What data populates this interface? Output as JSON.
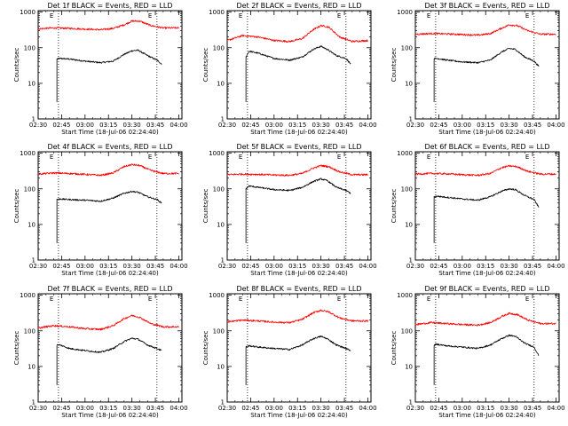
{
  "figure": {
    "shared": {
      "type": "line",
      "xlabel": "Start Time (18-Jul-06 02:24:40)",
      "ylabel": "Counts/sec",
      "x_ticks": [
        "02:30",
        "02:45",
        "03:00",
        "03:15",
        "03:30",
        "03:45",
        "04:00"
      ],
      "x_tick_minutes": [
        0,
        15,
        30,
        45,
        60,
        75,
        90
      ],
      "xlim_minutes_after_0230": [
        0,
        92
      ],
      "y_ticks": [
        "1",
        "10",
        "100",
        "1000"
      ],
      "y_tick_values": [
        1,
        10,
        100,
        1000
      ],
      "ylim": [
        1,
        1100
      ],
      "yscale": "log",
      "marker_label": "E",
      "colors": {
        "events": "#000000",
        "lld": "#ff0000"
      }
    }
  },
  "chart_data": [
    {
      "type": "line",
      "title": "Det 1f BLACK = Events, RED = LLD",
      "start_minute": 12,
      "end_minute": 79,
      "markers_minutes": [
        13,
        76
      ],
      "series": [
        {
          "name": "Events",
          "color": "black",
          "x": [
            12,
            14,
            20,
            30,
            40,
            48,
            55,
            60,
            64,
            70,
            76,
            79
          ],
          "y": [
            48,
            50,
            48,
            42,
            38,
            42,
            65,
            82,
            85,
            60,
            45,
            35
          ]
        },
        {
          "name": "LLD",
          "color": "red",
          "x": [
            0,
            10,
            20,
            30,
            40,
            48,
            55,
            60,
            65,
            72,
            80,
            90
          ],
          "y": [
            340,
            360,
            350,
            335,
            320,
            350,
            440,
            560,
            560,
            420,
            360,
            360
          ]
        }
      ]
    },
    {
      "type": "line",
      "title": "Det 2f BLACK = Events, RED = LLD",
      "start_minute": 12,
      "end_minute": 79,
      "markers_minutes": [
        13,
        76
      ],
      "series": [
        {
          "name": "Events",
          "color": "black",
          "x": [
            12,
            14,
            20,
            30,
            40,
            48,
            55,
            60,
            64,
            70,
            76,
            79
          ],
          "y": [
            55,
            80,
            70,
            50,
            45,
            55,
            90,
            110,
            90,
            60,
            50,
            35
          ]
        },
        {
          "name": "LLD",
          "color": "red",
          "x": [
            0,
            10,
            20,
            30,
            40,
            48,
            55,
            60,
            65,
            72,
            80,
            90
          ],
          "y": [
            160,
            220,
            200,
            160,
            150,
            180,
            320,
            420,
            380,
            200,
            150,
            160
          ]
        }
      ]
    },
    {
      "type": "line",
      "title": "Det 3f BLACK = Events, RED = LLD",
      "start_minute": 12,
      "end_minute": 79,
      "markers_minutes": [
        13,
        76
      ],
      "series": [
        {
          "name": "Events",
          "color": "black",
          "x": [
            12,
            14,
            20,
            30,
            40,
            48,
            55,
            60,
            64,
            70,
            76,
            79
          ],
          "y": [
            50,
            50,
            45,
            40,
            38,
            45,
            75,
            95,
            90,
            55,
            42,
            30
          ]
        },
        {
          "name": "LLD",
          "color": "red",
          "x": [
            0,
            10,
            20,
            30,
            40,
            48,
            55,
            60,
            65,
            72,
            80,
            90
          ],
          "y": [
            240,
            250,
            245,
            235,
            225,
            250,
            350,
            440,
            420,
            300,
            240,
            240
          ]
        }
      ]
    },
    {
      "type": "line",
      "title": "Det 4f BLACK = Events, RED = LLD",
      "start_minute": 12,
      "end_minute": 79,
      "markers_minutes": [
        13,
        76
      ],
      "series": [
        {
          "name": "Events",
          "color": "black",
          "x": [
            12,
            14,
            20,
            30,
            40,
            48,
            55,
            60,
            64,
            70,
            76,
            79
          ],
          "y": [
            50,
            52,
            50,
            48,
            45,
            55,
            75,
            85,
            80,
            60,
            50,
            40
          ]
        },
        {
          "name": "LLD",
          "color": "red",
          "x": [
            0,
            10,
            20,
            30,
            40,
            48,
            55,
            60,
            65,
            72,
            80,
            90
          ],
          "y": [
            260,
            280,
            270,
            255,
            240,
            280,
            420,
            480,
            450,
            330,
            270,
            270
          ]
        }
      ]
    },
    {
      "type": "line",
      "title": "Det 5f BLACK = Events, RED = LLD",
      "start_minute": 12,
      "end_minute": 79,
      "markers_minutes": [
        13,
        76
      ],
      "series": [
        {
          "name": "Events",
          "color": "black",
          "x": [
            12,
            14,
            20,
            30,
            40,
            48,
            55,
            60,
            64,
            70,
            76,
            79
          ],
          "y": [
            100,
            120,
            110,
            95,
            90,
            110,
            160,
            190,
            170,
            110,
            90,
            75
          ]
        },
        {
          "name": "LLD",
          "color": "red",
          "x": [
            0,
            10,
            20,
            30,
            40,
            48,
            55,
            60,
            65,
            72,
            80,
            90
          ],
          "y": [
            250,
            260,
            255,
            245,
            240,
            270,
            380,
            450,
            420,
            300,
            250,
            250
          ]
        }
      ]
    },
    {
      "type": "line",
      "title": "Det 6f BLACK = Events, RED = LLD",
      "start_minute": 12,
      "end_minute": 79,
      "markers_minutes": [
        13,
        76
      ],
      "series": [
        {
          "name": "Events",
          "color": "black",
          "x": [
            12,
            14,
            20,
            30,
            40,
            48,
            55,
            60,
            64,
            70,
            76,
            79
          ],
          "y": [
            60,
            62,
            58,
            52,
            48,
            60,
            85,
            100,
            95,
            65,
            50,
            30
          ]
        },
        {
          "name": "LLD",
          "color": "red",
          "x": [
            0,
            10,
            20,
            30,
            40,
            48,
            55,
            60,
            65,
            72,
            80,
            90
          ],
          "y": [
            260,
            270,
            265,
            250,
            240,
            270,
            390,
            440,
            420,
            310,
            260,
            260
          ]
        }
      ]
    },
    {
      "type": "line",
      "title": "Det 7f BLACK = Events, RED = LLD",
      "start_minute": 12,
      "end_minute": 79,
      "markers_minutes": [
        13,
        76
      ],
      "series": [
        {
          "name": "Events",
          "color": "black",
          "x": [
            12,
            14,
            20,
            30,
            40,
            48,
            55,
            60,
            64,
            70,
            76,
            79
          ],
          "y": [
            40,
            40,
            32,
            28,
            25,
            32,
            50,
            62,
            58,
            40,
            32,
            28
          ]
        },
        {
          "name": "LLD",
          "color": "red",
          "x": [
            0,
            10,
            20,
            30,
            40,
            48,
            55,
            60,
            65,
            72,
            80,
            90
          ],
          "y": [
            120,
            140,
            130,
            115,
            110,
            140,
            220,
            270,
            240,
            160,
            130,
            130
          ]
        }
      ]
    },
    {
      "type": "line",
      "title": "Det 8f BLACK = Events, RED = LLD",
      "start_minute": 12,
      "end_minute": 79,
      "markers_minutes": [
        13,
        76
      ],
      "series": [
        {
          "name": "Events",
          "color": "black",
          "x": [
            12,
            14,
            20,
            30,
            40,
            48,
            55,
            60,
            64,
            70,
            76,
            79
          ],
          "y": [
            35,
            38,
            35,
            32,
            30,
            40,
            60,
            70,
            60,
            40,
            32,
            28
          ]
        },
        {
          "name": "LLD",
          "color": "red",
          "x": [
            0,
            10,
            20,
            30,
            40,
            48,
            55,
            60,
            65,
            72,
            80,
            90
          ],
          "y": [
            180,
            200,
            190,
            175,
            170,
            210,
            320,
            380,
            340,
            230,
            190,
            190
          ]
        }
      ]
    },
    {
      "type": "line",
      "title": "Det 9f BLACK = Events, RED = LLD",
      "start_minute": 12,
      "end_minute": 79,
      "markers_minutes": [
        13,
        76
      ],
      "series": [
        {
          "name": "Events",
          "color": "black",
          "x": [
            12,
            14,
            20,
            30,
            40,
            48,
            55,
            60,
            64,
            70,
            76,
            79
          ],
          "y": [
            40,
            42,
            38,
            35,
            32,
            40,
            60,
            75,
            70,
            45,
            35,
            20
          ]
        },
        {
          "name": "LLD",
          "color": "red",
          "x": [
            0,
            10,
            20,
            30,
            40,
            48,
            55,
            60,
            65,
            72,
            80,
            90
          ],
          "y": [
            150,
            170,
            160,
            150,
            145,
            170,
            250,
            310,
            290,
            200,
            160,
            160
          ]
        }
      ]
    }
  ]
}
